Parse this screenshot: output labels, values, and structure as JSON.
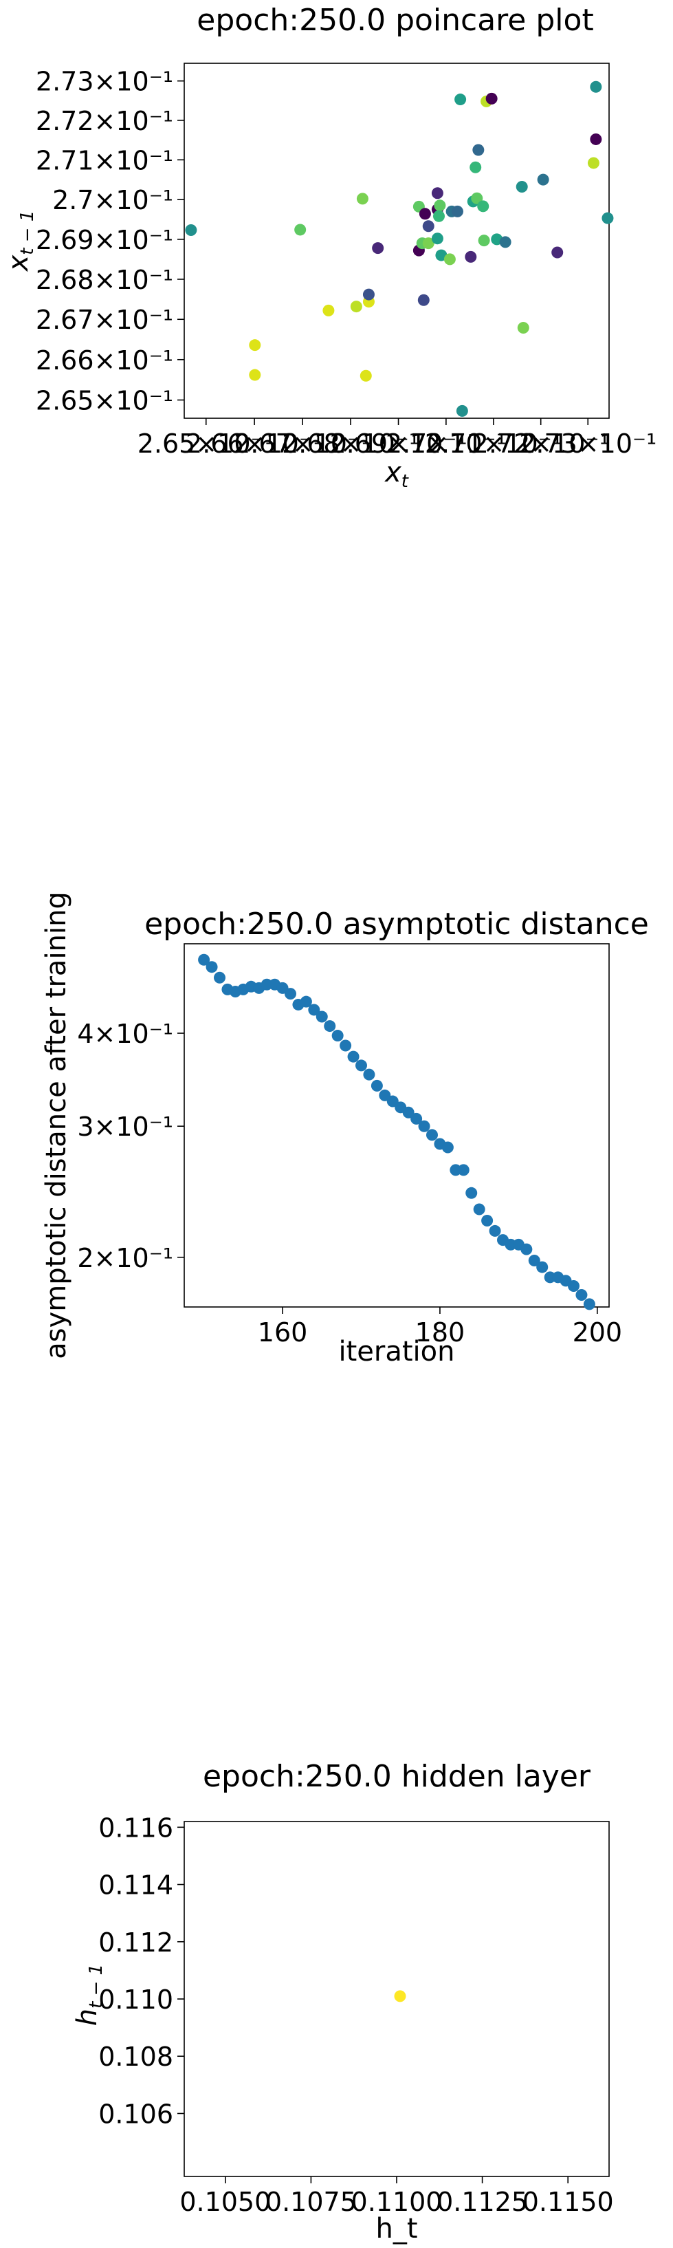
{
  "chart_data": [
    {
      "type": "scatter",
      "title": "epoch:250.0 poincare plot",
      "xlabel": "x_t",
      "ylabel": "x_{t-1}",
      "yscale": "log",
      "xscale": "log",
      "xlim": [
        0.26455,
        0.27345
      ],
      "ylim": [
        0.26455,
        0.27345
      ],
      "grid": false,
      "colormap": "viridis",
      "y_ticks": [
        {
          "value": 0.265,
          "label": "2.65×10⁻¹"
        },
        {
          "value": 0.266,
          "label": "2.66×10⁻¹"
        },
        {
          "value": 0.267,
          "label": "2.67×10⁻¹"
        },
        {
          "value": 0.268,
          "label": "2.68×10⁻¹"
        },
        {
          "value": 0.269,
          "label": "2.69×10⁻¹"
        },
        {
          "value": 0.27,
          "label": "2.7×10⁻¹"
        },
        {
          "value": 0.271,
          "label": "2.71×10⁻¹"
        },
        {
          "value": 0.272,
          "label": "2.72×10⁻¹"
        },
        {
          "value": 0.273,
          "label": "2.73×10⁻¹"
        }
      ],
      "x_ticks": [
        {
          "value": 0.265,
          "label": "2.65×10⁻¹"
        },
        {
          "value": 0.266,
          "label": "2.66×10⁻¹"
        },
        {
          "value": 0.267,
          "label": "2.67×10⁻¹"
        },
        {
          "value": 0.268,
          "label": "2.68×10⁻¹"
        },
        {
          "value": 0.269,
          "label": "2.69×10⁻¹"
        },
        {
          "value": 0.27,
          "label": "2.7×10⁻¹"
        },
        {
          "value": 0.271,
          "label": "2.71×10⁻¹"
        },
        {
          "value": 0.272,
          "label": "2.72×10⁻¹"
        },
        {
          "value": 0.273,
          "label": "2.73×10⁻¹"
        }
      ],
      "points": [
        {
          "x": 0.26469,
          "y": 0.26923,
          "color": "#21908d"
        },
        {
          "x": 0.26695,
          "y": 0.26924,
          "color": "#5ec962"
        },
        {
          "x": 0.26601,
          "y": 0.26636,
          "color": "#dde318"
        },
        {
          "x": 0.26601,
          "y": 0.26562,
          "color": "#dde318"
        },
        {
          "x": 0.26754,
          "y": 0.26722,
          "color": "#dde318"
        },
        {
          "x": 0.26812,
          "y": 0.26732,
          "color": "#bddf26"
        },
        {
          "x": 0.26838,
          "y": 0.26744,
          "color": "#dde318"
        },
        {
          "x": 0.26838,
          "y": 0.26762,
          "color": "#3b528b"
        },
        {
          "x": 0.26832,
          "y": 0.2656,
          "color": "#dde318"
        },
        {
          "x": 0.26825,
          "y": 0.27002,
          "color": "#7ad151"
        },
        {
          "x": 0.26857,
          "y": 0.26878,
          "color": "#482878"
        },
        {
          "x": 0.26953,
          "y": 0.26748,
          "color": "#3e4989"
        },
        {
          "x": 0.26943,
          "y": 0.26982,
          "color": "#5ec962"
        },
        {
          "x": 0.26943,
          "y": 0.26872,
          "color": "#440154"
        },
        {
          "x": 0.2695,
          "y": 0.2689,
          "color": "#5ec962"
        },
        {
          "x": 0.26956,
          "y": 0.26964,
          "color": "#440154"
        },
        {
          "x": 0.26963,
          "y": 0.26933,
          "color": "#3e4989"
        },
        {
          "x": 0.26963,
          "y": 0.2689,
          "color": "#7ad151"
        },
        {
          "x": 0.26982,
          "y": 0.26975,
          "color": "#440154"
        },
        {
          "x": 0.26987,
          "y": 0.26985,
          "color": "#5ec962"
        },
        {
          "x": 0.26985,
          "y": 0.26958,
          "color": "#35b779"
        },
        {
          "x": 0.26982,
          "y": 0.26902,
          "color": "#1f9e89"
        },
        {
          "x": 0.26982,
          "y": 0.27016,
          "color": "#482878"
        },
        {
          "x": 0.2699,
          "y": 0.2686,
          "color": "#1f9e89"
        },
        {
          "x": 0.27008,
          "y": 0.2685,
          "color": "#7ad151"
        },
        {
          "x": 0.27012,
          "y": 0.2697,
          "color": "#2c728e"
        },
        {
          "x": 0.27024,
          "y": 0.2697,
          "color": "#31688e"
        },
        {
          "x": 0.2703,
          "y": 0.27253,
          "color": "#1f9e89"
        },
        {
          "x": 0.27034,
          "y": 0.26473,
          "color": "#21908d"
        },
        {
          "x": 0.27052,
          "y": 0.26856,
          "color": "#482878"
        },
        {
          "x": 0.27057,
          "y": 0.26995,
          "color": "#20a386"
        },
        {
          "x": 0.27062,
          "y": 0.27081,
          "color": "#35b779"
        },
        {
          "x": 0.27065,
          "y": 0.27003,
          "color": "#5ec962"
        },
        {
          "x": 0.27068,
          "y": 0.27125,
          "color": "#31688e"
        },
        {
          "x": 0.27078,
          "y": 0.26983,
          "color": "#35b779"
        },
        {
          "x": 0.2708,
          "y": 0.26897,
          "color": "#5ec962"
        },
        {
          "x": 0.27085,
          "y": 0.27248,
          "color": "#bddf26"
        },
        {
          "x": 0.27096,
          "y": 0.27255,
          "color": "#440154"
        },
        {
          "x": 0.27107,
          "y": 0.269,
          "color": "#20a386"
        },
        {
          "x": 0.27125,
          "y": 0.26893,
          "color": "#2c728e"
        },
        {
          "x": 0.2716,
          "y": 0.27032,
          "color": "#21918c"
        },
        {
          "x": 0.27163,
          "y": 0.26679,
          "color": "#7ad151"
        },
        {
          "x": 0.27205,
          "y": 0.2705,
          "color": "#2c728e"
        },
        {
          "x": 0.27235,
          "y": 0.26867,
          "color": "#482878"
        },
        {
          "x": 0.27312,
          "y": 0.27092,
          "color": "#bddf26"
        },
        {
          "x": 0.27317,
          "y": 0.27285,
          "color": "#21908d"
        },
        {
          "x": 0.27317,
          "y": 0.27152,
          "color": "#440154"
        },
        {
          "x": 0.27342,
          "y": 0.26953,
          "color": "#21908d"
        }
      ]
    },
    {
      "type": "scatter",
      "title": "epoch:250.0 asymptotic distance",
      "xlabel": "iteration",
      "ylabel": "asymptotic distance after training",
      "yscale": "log",
      "xlim": [
        147.5,
        201.5
      ],
      "ylim": [
        0.1715,
        0.5275
      ],
      "grid": false,
      "color": "#1f77b4",
      "x_ticks": [
        {
          "value": 160,
          "label": "160"
        },
        {
          "value": 180,
          "label": "180"
        },
        {
          "value": 200,
          "label": "200"
        }
      ],
      "y_ticks": [
        {
          "value": 0.4,
          "label": "4×10⁻¹"
        },
        {
          "value": 0.3,
          "label": "3×10⁻¹"
        },
        {
          "value": 0.2,
          "label": "2×10⁻¹"
        }
      ],
      "x": [
        150,
        151,
        152,
        153,
        154,
        155,
        156,
        157,
        158,
        159,
        160,
        161,
        162,
        163,
        164,
        165,
        166,
        167,
        168,
        169,
        170,
        171,
        172,
        173,
        174,
        175,
        176,
        177,
        178,
        179,
        180,
        181,
        182,
        183,
        184,
        185,
        186,
        187,
        188,
        189,
        190,
        191,
        192,
        193,
        194,
        195,
        196,
        197,
        198,
        199
      ],
      "y": [
        0.502,
        0.491,
        0.475,
        0.458,
        0.455,
        0.458,
        0.462,
        0.46,
        0.465,
        0.465,
        0.46,
        0.452,
        0.437,
        0.441,
        0.43,
        0.421,
        0.409,
        0.397,
        0.385,
        0.372,
        0.362,
        0.352,
        0.34,
        0.33,
        0.324,
        0.318,
        0.313,
        0.307,
        0.3,
        0.292,
        0.284,
        0.281,
        0.262,
        0.262,
        0.244,
        0.232,
        0.224,
        0.217,
        0.211,
        0.208,
        0.208,
        0.205,
        0.198,
        0.194,
        0.188,
        0.188,
        0.186,
        0.183,
        0.178,
        0.173
      ]
    },
    {
      "type": "scatter",
      "title": "epoch:250.0 hidden layer",
      "xlabel": "h_t",
      "ylabel": "h_{t-1}",
      "xlim": [
        0.1038,
        0.1162
      ],
      "ylim": [
        0.1038,
        0.1162
      ],
      "grid": false,
      "x_ticks": [
        {
          "value": 0.105,
          "label": "0.1050"
        },
        {
          "value": 0.1075,
          "label": "0.1075"
        },
        {
          "value": 0.11,
          "label": "0.1100"
        },
        {
          "value": 0.1125,
          "label": "0.1125"
        },
        {
          "value": 0.115,
          "label": "0.1150"
        }
      ],
      "y_ticks": [
        {
          "value": 0.106,
          "label": "0.106"
        },
        {
          "value": 0.108,
          "label": "0.108"
        },
        {
          "value": 0.11,
          "label": "0.110"
        },
        {
          "value": 0.112,
          "label": "0.112"
        },
        {
          "value": 0.114,
          "label": "0.114"
        },
        {
          "value": 0.116,
          "label": "0.116"
        }
      ],
      "points": [
        {
          "x": 0.1101,
          "y": 0.1101,
          "color": "#fde725"
        }
      ]
    }
  ]
}
